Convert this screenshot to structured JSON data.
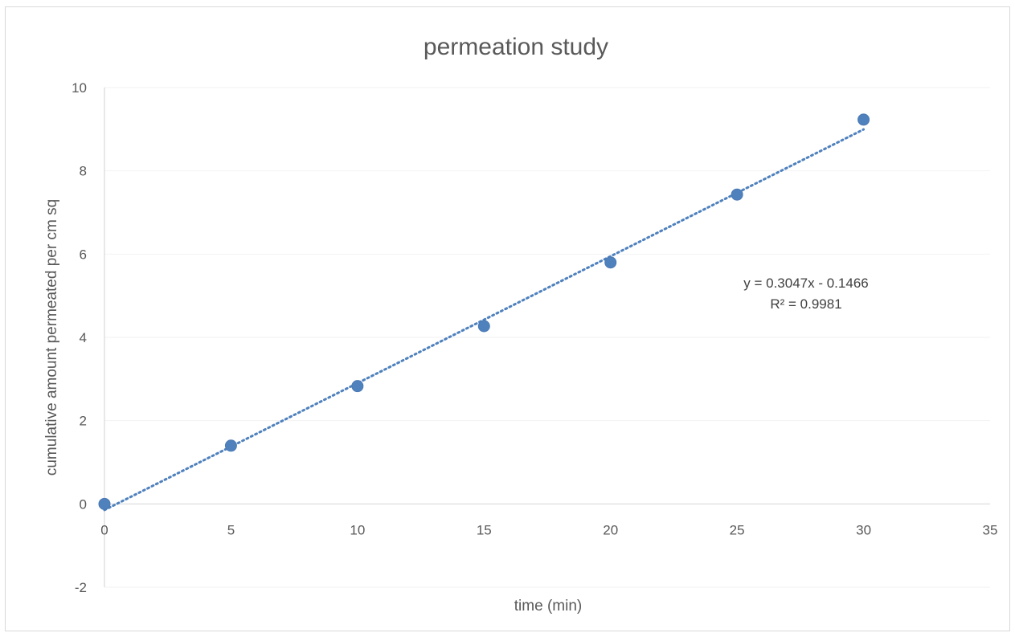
{
  "chart_data": {
    "type": "scatter",
    "title": "permeation study",
    "xlabel": "time (min)",
    "ylabel": "cumulative amount permeated per cm sq",
    "xlim": [
      0,
      35
    ],
    "ylim": [
      -2,
      10
    ],
    "x_ticks": [
      0,
      5,
      10,
      15,
      20,
      25,
      30,
      35
    ],
    "y_ticks": [
      -2,
      0,
      2,
      4,
      6,
      8,
      10
    ],
    "grid": true,
    "series": [
      {
        "x": [
          0,
          5,
          10,
          15,
          20,
          25,
          30
        ],
        "values": [
          0,
          1.4,
          2.83,
          4.27,
          5.8,
          7.43,
          9.23
        ]
      }
    ],
    "trendline": {
      "type": "linear",
      "slope": 0.3047,
      "intercept": -0.1466,
      "equation": "y = 0.3047x - 0.1466",
      "r_squared": "R² = 0.9981"
    },
    "colors": {
      "marker": "#4f81bd",
      "trendline": "#4f81bd",
      "axis": "#d9d9d9",
      "grid": "#f2f2f2"
    }
  }
}
